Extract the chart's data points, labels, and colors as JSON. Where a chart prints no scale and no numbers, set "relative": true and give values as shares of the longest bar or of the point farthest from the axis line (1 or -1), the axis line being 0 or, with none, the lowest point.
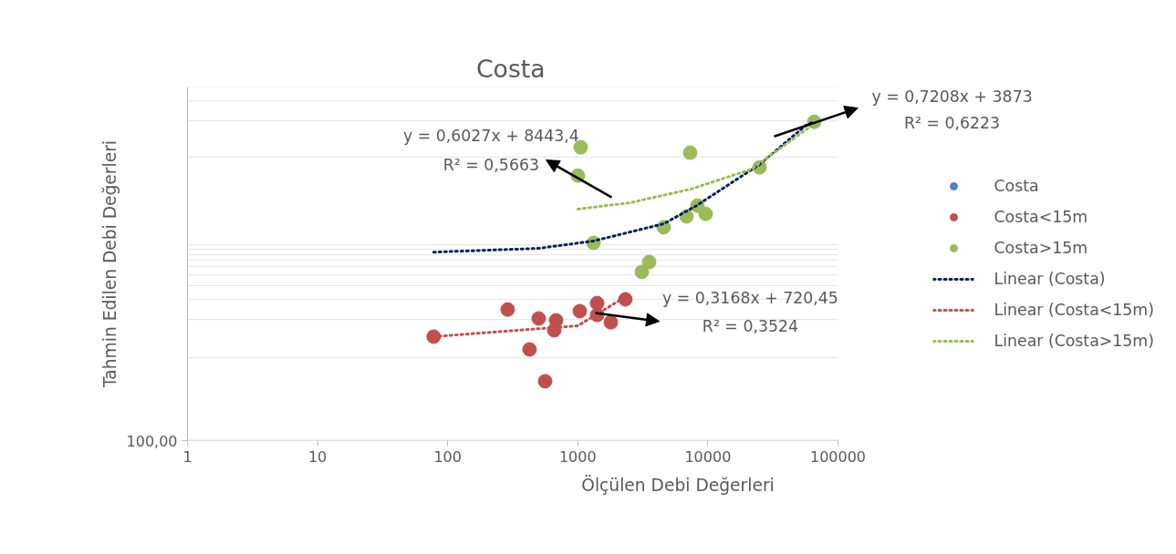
{
  "chart_data": {
    "type": "scatter",
    "title": "Costa",
    "xlabel": "Ölçülen Debi Değerleri",
    "ylabel": "Tahmin Edilen Debi Değerleri",
    "relative": true,
    "log": "x",
    "xlim": [
      1,
      100000
    ],
    "xticks": [
      1,
      10,
      100,
      1000,
      10000,
      100000
    ],
    "grid": "y",
    "legend": "right",
    "series": [
      {
        "name": "Costa",
        "marker": "circle",
        "color": "#4f81bd"
      },
      {
        "name": "Costa<15m",
        "marker": "circle",
        "color": "#c0504d",
        "x": [
          78,
          289,
          501,
          426,
          561,
          659,
          681,
          1036,
          1409,
          1409,
          1795,
          2323
        ],
        "values": [
          0.326,
          0.411,
          0.383,
          0.286,
          0.186,
          0.346,
          0.377,
          0.406,
          0.431,
          0.394,
          0.371,
          0.443
        ]
      },
      {
        "name": "Costa>15m",
        "marker": "circle",
        "color": "#9bbb59",
        "x": [
          1053,
          1003,
          1321,
          3107,
          3537,
          4580,
          7310,
          6855,
          8320,
          9620,
          24950,
          65700
        ],
        "values": [
          0.92,
          0.831,
          0.62,
          0.529,
          0.56,
          0.669,
          0.903,
          0.703,
          0.737,
          0.711,
          0.857,
          1.0
        ]
      },
      {
        "name": "Linear (Costa)",
        "type": "line",
        "marker": "none",
        "line_style": "dotted",
        "color": "#002060",
        "x": [
          78,
          501,
          1321,
          4580,
          8180,
          24950,
          56800,
          65700
        ],
        "values": [
          0.591,
          0.603,
          0.626,
          0.68,
          0.737,
          0.866,
          0.989,
          1.0
        ]
      },
      {
        "name": "Linear (Costa<15m)",
        "type": "line",
        "marker": "none",
        "line_style": "dotted",
        "color": "#c0504d",
        "x": [
          78,
          346,
          1000,
          2323
        ],
        "values": [
          0.326,
          0.346,
          0.36,
          0.451
        ]
      },
      {
        "name": "Linear (Costa>15m)",
        "type": "line",
        "marker": "none",
        "line_style": "dotted",
        "color": "#9bbb59",
        "x": [
          1003,
          2518,
          7430,
          21560,
          65700
        ],
        "values": [
          0.726,
          0.746,
          0.789,
          0.851,
          0.994
        ]
      }
    ],
    "annotations": [
      "y = 0,6027x + 8443,4\nR² = 0,5663",
      "y = 0,7208x + 3873\nR² = 0,6223",
      "y = 0,3168x + 720,45\nR² = 0,3524",
      "100,00"
    ]
  }
}
